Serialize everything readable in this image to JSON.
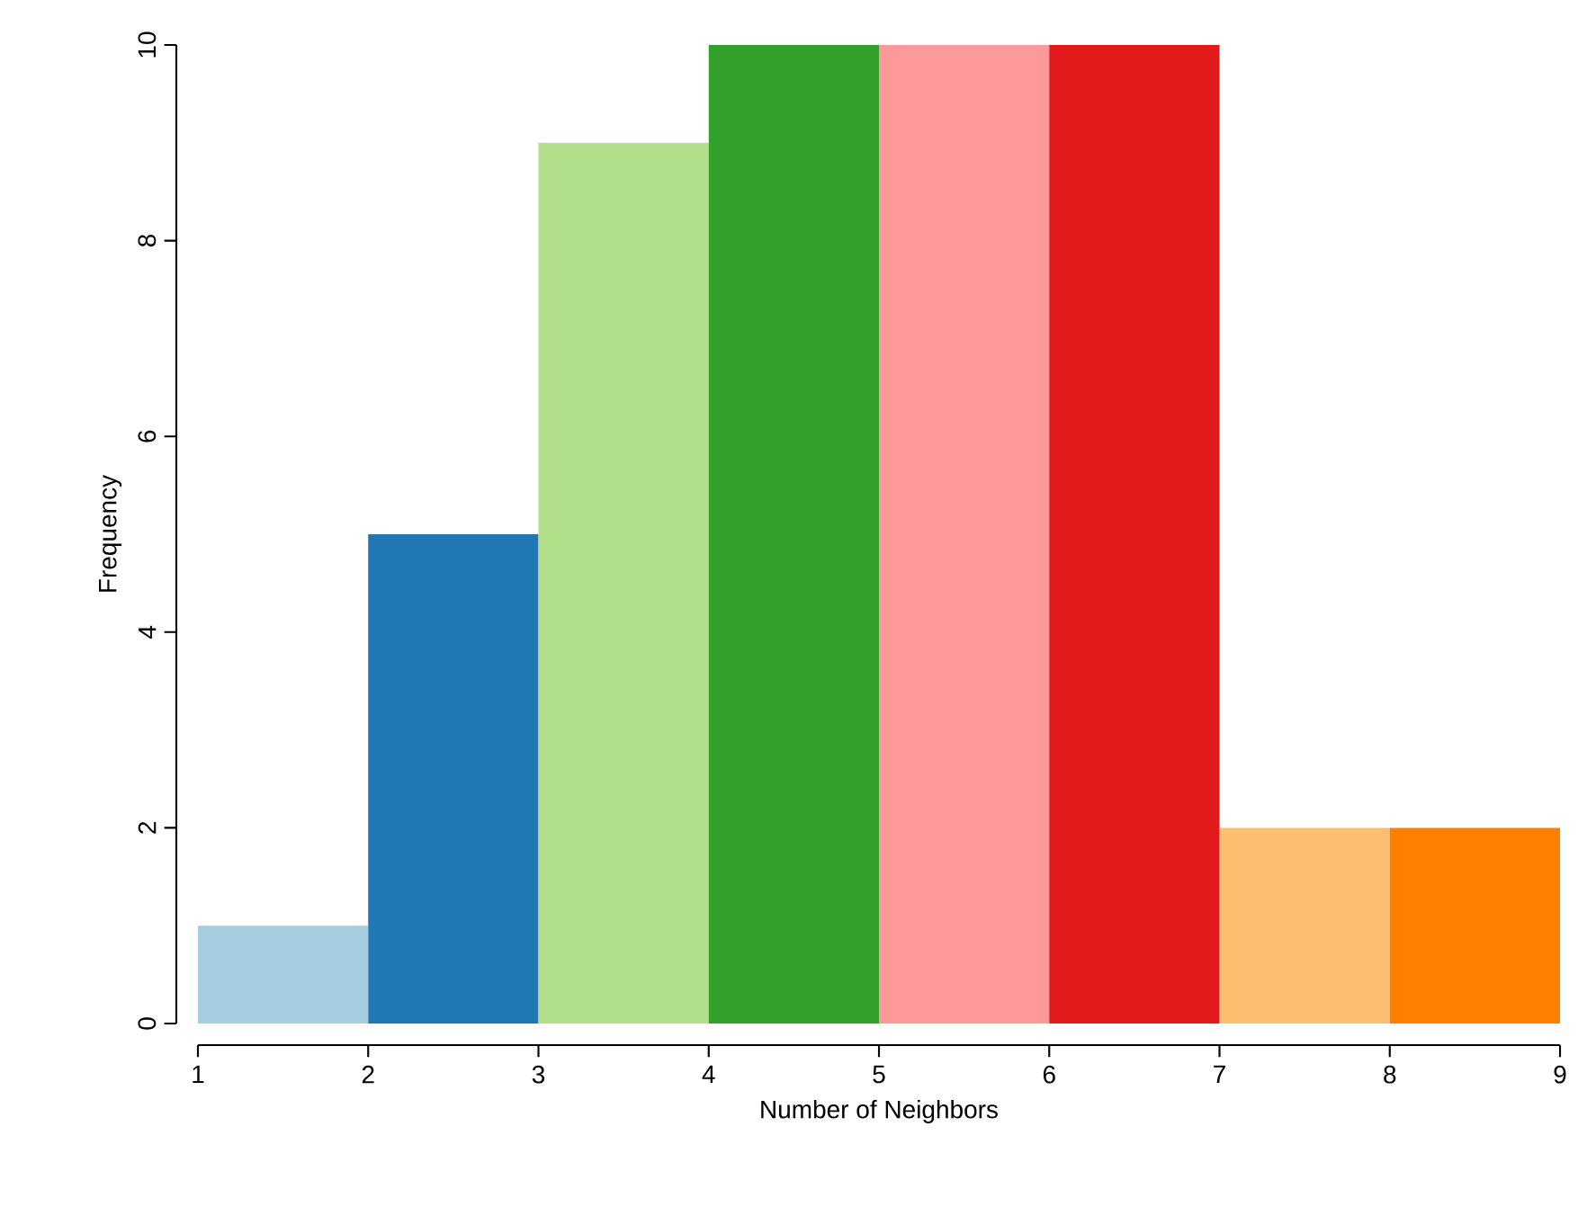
{
  "chart_data": {
    "type": "histogram",
    "xlabel": "Number of Neighbors",
    "ylabel": "Frequency",
    "bins": [
      1,
      2,
      3,
      4,
      5,
      6,
      7,
      8,
      9
    ],
    "values": [
      1,
      5,
      9,
      10,
      10,
      10,
      2,
      2
    ],
    "colors": [
      "#a6cee3",
      "#1f78b4",
      "#b2df8a",
      "#33a02c",
      "#fb9a99",
      "#e31a1c",
      "#fdbf6f",
      "#ff7f00"
    ],
    "xlim": [
      1,
      9
    ],
    "ylim": [
      0,
      10
    ],
    "xticks": [
      1,
      2,
      3,
      4,
      5,
      6,
      7,
      8,
      9
    ],
    "yticks": [
      0,
      2,
      4,
      6,
      8,
      10
    ]
  }
}
